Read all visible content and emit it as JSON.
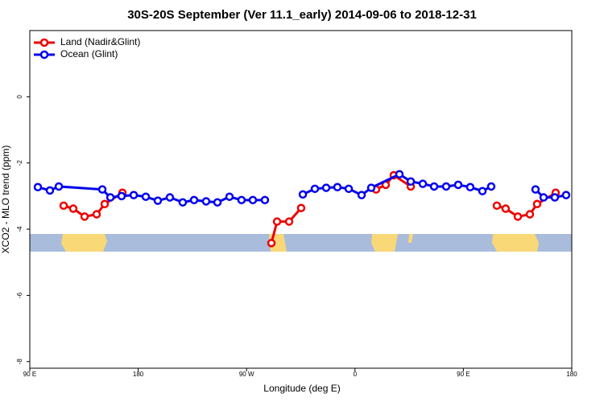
{
  "chart_data": {
    "type": "line",
    "title": "30S-20S September (Ver 11.1_early)   2014-09-06 to 2018-12-31",
    "x_label": "Longitude (deg E)",
    "y_label": "XCO2 - MLO trend (ppm)",
    "xlim": [
      90,
      540
    ],
    "ylim": [
      -8.2,
      2
    ],
    "xticks": [
      {
        "value": 90,
        "label": "90 E"
      },
      180,
      {
        "value": 270,
        "label": "90 W"
      },
      {
        "value": 360,
        "label": "0"
      },
      {
        "value": 450,
        "label": "90 E"
      },
      {
        "value": 540,
        "label": "180"
      }
    ],
    "yticks": [
      0,
      -2,
      -4,
      -6,
      -8
    ],
    "legend": "top-left",
    "series": [
      {
        "name": "Land (Nadir&Glint)",
        "color": "#ee0000",
        "x": [
          118.1,
          126.1,
          135.5,
          145.5,
          152.2,
          166.9,
          null,
          290.6,
          295.3,
          305.3,
          315.3,
          null,
          377.5,
          385.5,
          392.2,
          406.3,
          null,
          477.8,
          485.1,
          495.2,
          505.2,
          511.2,
          526.6
        ],
        "values": [
          -3.29,
          -3.38,
          -3.62,
          -3.55,
          -3.24,
          -2.9,
          null,
          -4.42,
          -3.77,
          -3.77,
          -3.36,
          null,
          -2.8,
          -2.66,
          -2.37,
          -2.71,
          null,
          -3.29,
          -3.38,
          -3.62,
          -3.55,
          -3.24,
          -2.9
        ]
      },
      {
        "name": "Ocean (Glint)",
        "color": "#0000ee",
        "x": [
          96.7,
          106.7,
          114.1,
          150.2,
          156.9,
          166.2,
          176.3,
          186.3,
          196.3,
          206.3,
          217.0,
          226.4,
          236.4,
          245.8,
          255.8,
          265.8,
          275.2,
          285.2,
          null,
          316.7,
          326.7,
          336.1,
          345.4,
          354.8,
          365.5,
          373.5,
          396.9,
          406.3,
          416.3,
          425.7,
          435.7,
          445.7,
          455.7,
          465.8,
          473.1,
          null,
          509.9,
          516.6,
          525.9,
          535.3
        ],
        "values": [
          -2.73,
          -2.83,
          -2.71,
          -2.8,
          -3.04,
          -3.0,
          -2.97,
          -3.02,
          -3.14,
          -3.04,
          -3.19,
          -3.12,
          -3.16,
          -3.19,
          -3.02,
          -3.12,
          -3.12,
          -3.12,
          null,
          -2.95,
          -2.78,
          -2.75,
          -2.73,
          -2.78,
          -2.97,
          -2.75,
          -2.34,
          -2.56,
          -2.63,
          -2.71,
          -2.71,
          -2.66,
          -2.73,
          -2.85,
          -2.71,
          null,
          -2.8,
          -3.04,
          -3.04,
          -2.97
        ]
      }
    ]
  }
}
